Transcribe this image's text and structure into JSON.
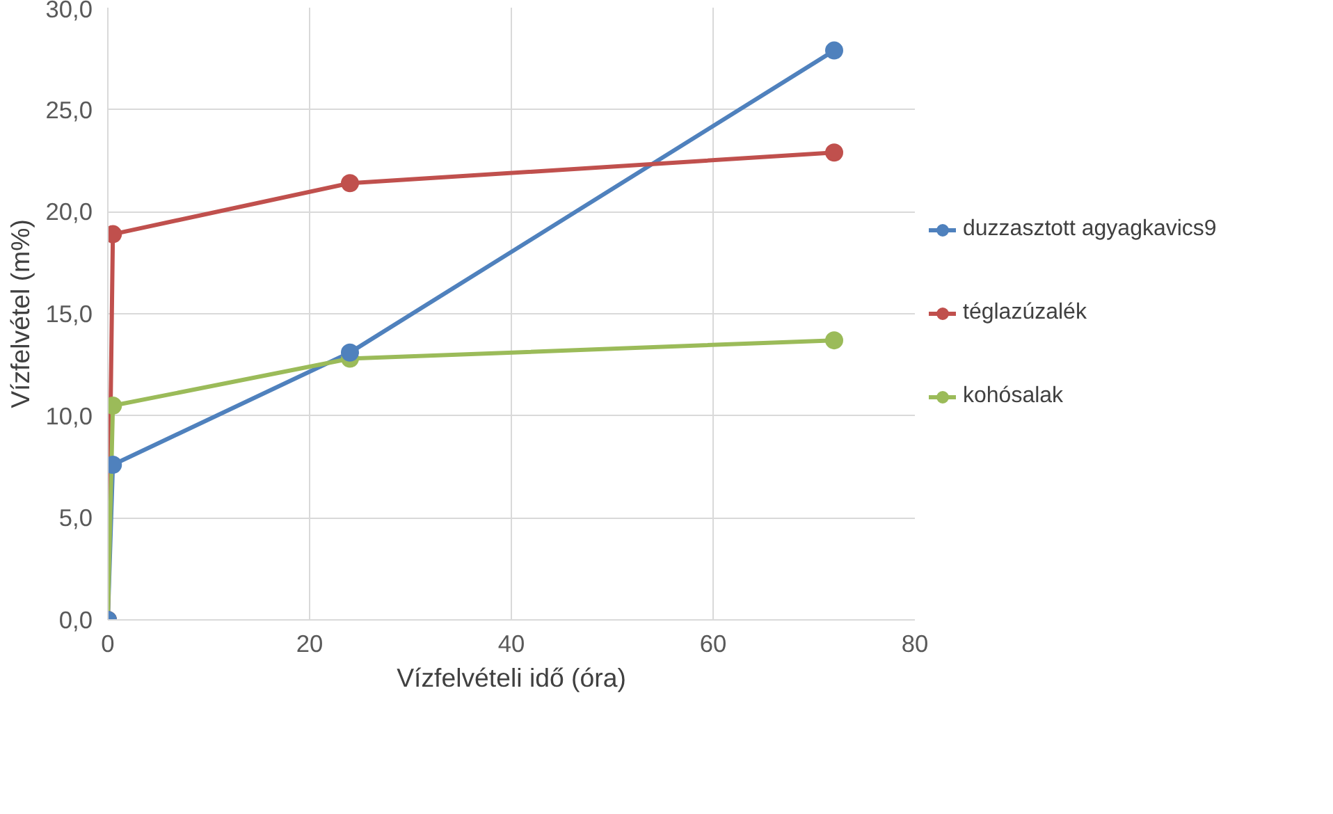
{
  "chart_data": {
    "type": "line",
    "xlabel": "Vízfelvételi idő (óra)",
    "ylabel": "Vízfelvétel (m%)",
    "xlim": [
      0,
      80
    ],
    "xticks": [
      0,
      20,
      40,
      60,
      80
    ],
    "ylim": [
      0,
      30
    ],
    "yticks": [
      {
        "value": 0,
        "label": "0,0"
      },
      {
        "value": 5,
        "label": "5,0"
      },
      {
        "value": 10,
        "label": "10,0"
      },
      {
        "value": 15,
        "label": "15,0"
      },
      {
        "value": 20,
        "label": "20,0"
      },
      {
        "value": 25,
        "label": "25,0"
      },
      {
        "value": 30,
        "label": "30,0"
      }
    ],
    "grid": true,
    "legend": "right",
    "marker": "circle",
    "line_style": "solid",
    "x": [
      0,
      0.5,
      24,
      72
    ],
    "series": [
      {
        "name": "duzzasztott agyagkavics9",
        "color": "#4f81bd",
        "values": [
          0,
          7.6,
          13.1,
          27.9
        ]
      },
      {
        "name": "téglazúzalék",
        "color": "#c0504d",
        "values": [
          0,
          18.9,
          21.4,
          22.9
        ]
      },
      {
        "name": "kohósalak",
        "color": "#9bbb59",
        "values": [
          0,
          10.5,
          12.8,
          13.7
        ]
      }
    ]
  }
}
